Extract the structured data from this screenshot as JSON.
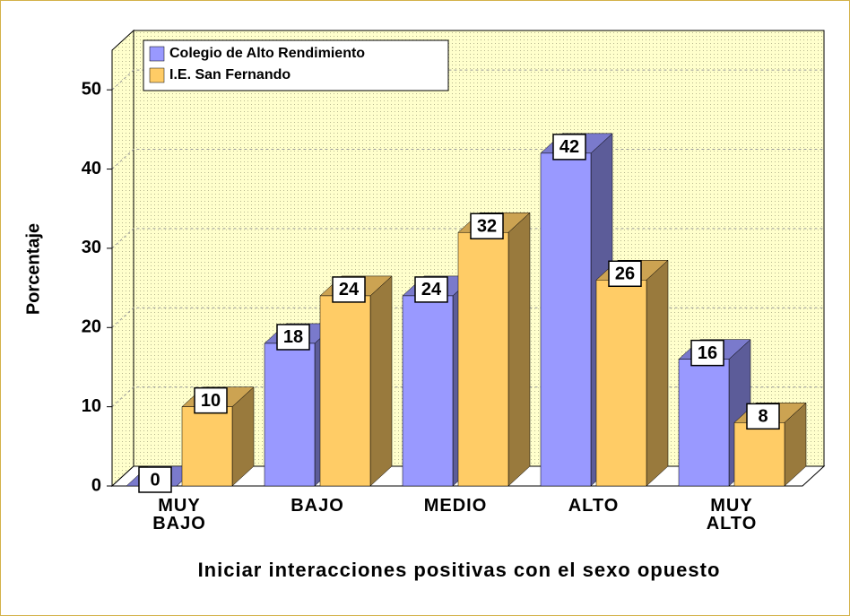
{
  "chart_data": {
    "type": "bar3d",
    "x_label": "Iniciar interacciones positivas con el sexo opuesto",
    "y_label": "Porcentaje",
    "categories": [
      "MUY BAJO",
      "BAJO",
      "MEDIO",
      "ALTO",
      "MUY ALTO"
    ],
    "series": [
      {
        "name": "Colegio de Alto Rendimiento",
        "color": "#9999ff",
        "values": [
          0,
          18,
          24,
          42,
          16
        ]
      },
      {
        "name": "I.E. San Fernando",
        "color": "#ffcc66",
        "values": [
          10,
          24,
          32,
          26,
          8
        ]
      }
    ],
    "ylim": [
      0,
      55
    ],
    "yticks": [
      0,
      10,
      20,
      30,
      40,
      50
    ],
    "grid": true,
    "legend": "top-left"
  }
}
